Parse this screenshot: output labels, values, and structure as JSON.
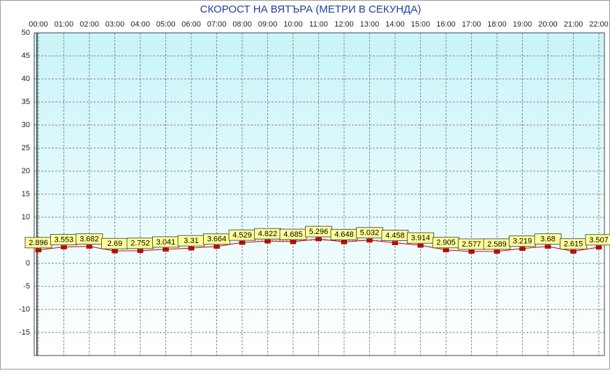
{
  "chart_data": {
    "type": "line",
    "title": "СКОРОСТ НА ВЯТЪРА (МЕТРИ В СЕКУНДА)",
    "categories": [
      "00:00",
      "01:00",
      "02:00",
      "03:00",
      "04:00",
      "05:00",
      "06:00",
      "07:00",
      "08:00",
      "09:00",
      "10:00",
      "11:00",
      "12:00",
      "13:00",
      "14:00",
      "15:00",
      "16:00",
      "17:00",
      "18:00",
      "19:00",
      "20:00",
      "21:00",
      "22:00"
    ],
    "values": [
      2.896,
      3.553,
      3.682,
      2.69,
      2.752,
      3.041,
      3.31,
      3.664,
      4.529,
      4.822,
      4.685,
      5.296,
      4.648,
      5.032,
      4.458,
      3.914,
      2.905,
      2.577,
      2.589,
      3.219,
      3.68,
      2.615,
      3.507
    ],
    "color": "#cc0000",
    "ylim": [
      -20,
      50
    ],
    "yticks": [
      -15,
      -10,
      -5,
      0,
      5,
      10,
      15,
      20,
      25,
      30,
      35,
      40,
      45,
      50
    ],
    "grid": true
  }
}
